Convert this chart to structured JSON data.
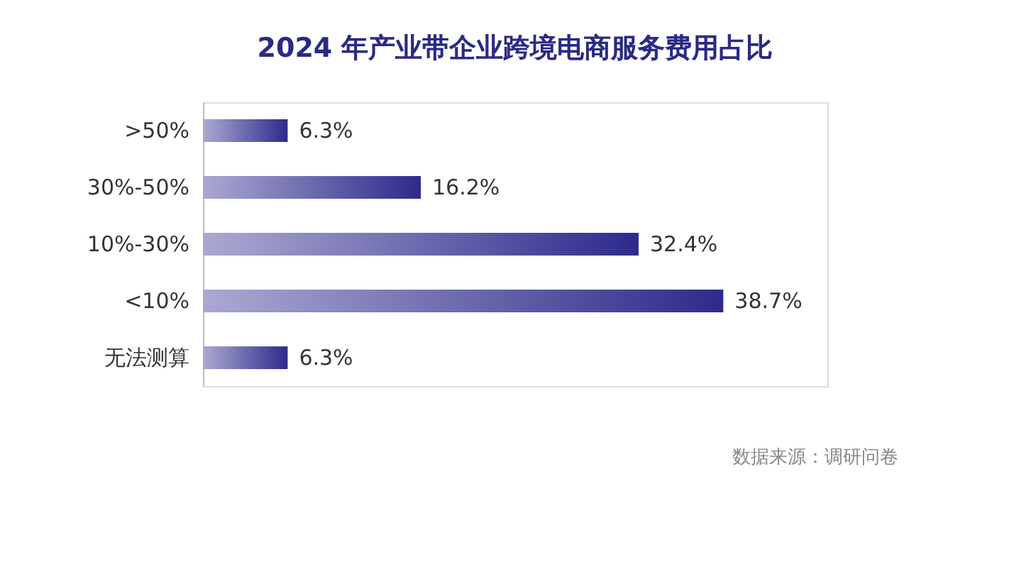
{
  "chart_data": {
    "type": "bar",
    "orientation": "horizontal",
    "title": "2024 年产业带企业跨境电商服务费用占比",
    "categories": [
      ">50%",
      "30%-50%",
      "10%-30%",
      "<10%",
      "无法测算"
    ],
    "values": [
      6.3,
      16.2,
      32.4,
      38.7,
      6.3
    ],
    "color": "#2e2a8c",
    "value_labels": [
      "6.3%",
      "16.2%",
      "32.4%",
      "38.7%",
      "6.3%"
    ],
    "annotations": [
      "数据来源：调研问卷"
    ]
  }
}
